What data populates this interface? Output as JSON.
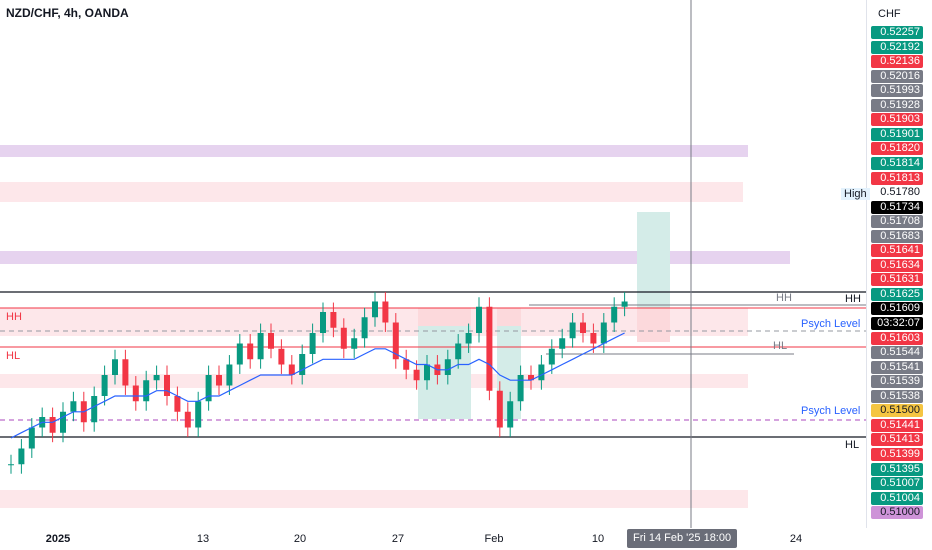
{
  "header": {
    "symbol": "NZD/CHF, 4h, OANDA",
    "currency": "CHF"
  },
  "price_axis": {
    "labels": [
      {
        "text": "0.52257",
        "bg": "#089981",
        "fg": "#ffffff"
      },
      {
        "text": "0.52192",
        "bg": "#089981",
        "fg": "#ffffff"
      },
      {
        "text": "0.52136",
        "bg": "#f23645",
        "fg": "#ffffff"
      },
      {
        "text": "0.52016",
        "bg": "#787b86",
        "fg": "#ffffff"
      },
      {
        "text": "0.51993",
        "bg": "#787b86",
        "fg": "#ffffff"
      },
      {
        "text": "0.51928",
        "bg": "#787b86",
        "fg": "#ffffff"
      },
      {
        "text": "0.51903",
        "bg": "#f23645",
        "fg": "#ffffff"
      },
      {
        "text": "0.51901",
        "bg": "#089981",
        "fg": "#ffffff"
      },
      {
        "text": "0.51820",
        "bg": "#f23645",
        "fg": "#ffffff"
      },
      {
        "text": "0.51814",
        "bg": "#089981",
        "fg": "#ffffff"
      },
      {
        "text": "0.51813",
        "bg": "#f23645",
        "fg": "#ffffff"
      },
      {
        "text": "0.51780",
        "bg": "#ffffff",
        "fg": "#131722"
      },
      {
        "text": "0.51734",
        "bg": "#000000",
        "fg": "#ffffff"
      },
      {
        "text": "0.51708",
        "bg": "#787b86",
        "fg": "#ffffff"
      },
      {
        "text": "0.51683",
        "bg": "#787b86",
        "fg": "#ffffff"
      },
      {
        "text": "0.51641",
        "bg": "#f23645",
        "fg": "#ffffff"
      },
      {
        "text": "0.51634",
        "bg": "#f23645",
        "fg": "#ffffff"
      },
      {
        "text": "0.51631",
        "bg": "#f23645",
        "fg": "#ffffff"
      },
      {
        "text": "0.51625",
        "bg": "#089981",
        "fg": "#ffffff"
      },
      {
        "text": "0.51609",
        "bg": "#000000",
        "fg": "#ffffff"
      },
      {
        "text": "03:32:07",
        "bg": "#000000",
        "fg": "#ffffff"
      },
      {
        "text": "0.51603",
        "bg": "#f23645",
        "fg": "#ffffff"
      },
      {
        "text": "0.51544",
        "bg": "#787b86",
        "fg": "#ffffff"
      },
      {
        "text": "0.51541",
        "bg": "#787b86",
        "fg": "#ffffff"
      },
      {
        "text": "0.51539",
        "bg": "#787b86",
        "fg": "#ffffff"
      },
      {
        "text": "0.51538",
        "bg": "#787b86",
        "fg": "#ffffff"
      },
      {
        "text": "0.51500",
        "bg": "#f5c542",
        "fg": "#131722"
      },
      {
        "text": "0.51441",
        "bg": "#f23645",
        "fg": "#ffffff"
      },
      {
        "text": "0.51413",
        "bg": "#f23645",
        "fg": "#ffffff"
      },
      {
        "text": "0.51399",
        "bg": "#f23645",
        "fg": "#ffffff"
      },
      {
        "text": "0.51395",
        "bg": "#089981",
        "fg": "#ffffff"
      },
      {
        "text": "0.51007",
        "bg": "#089981",
        "fg": "#ffffff"
      },
      {
        "text": "0.51004",
        "bg": "#089981",
        "fg": "#ffffff"
      },
      {
        "text": "0.51000",
        "bg": "#ce93d8",
        "fg": "#131722"
      }
    ],
    "tags": {
      "high": "High",
      "psych1": "Psych Level",
      "psych2": "Psych Level",
      "hh_right": "HH",
      "hl_right": "HL",
      "hh_gray": "HH",
      "hl_gray": "HL",
      "hh_left": "HH",
      "hl_left": "HL"
    }
  },
  "time_axis": {
    "labels": [
      "2025",
      "13",
      "20",
      "27",
      "Feb",
      "10",
      "24"
    ],
    "crosshair": "Fri 14 Feb '25   18:00"
  },
  "colors": {
    "up": "#089981",
    "down": "#f23645",
    "ma": "#2962ff",
    "zone_pink": "#fde7ea",
    "zone_purple": "#e6d3ef",
    "target": "#d4ece8",
    "stop": "#fcd9dc"
  },
  "chart_data": {
    "type": "candlestick",
    "title": "NZD/CHF, 4h, OANDA",
    "ylabel": "CHF",
    "ylim": [
      0.51,
      0.52257
    ],
    "x_tick_labels": [
      "2025",
      "13",
      "20",
      "27",
      "Feb",
      "10",
      "24"
    ],
    "levels": {
      "HH": 0.51625,
      "HL": 0.51603,
      "psych_levels": [
        0.51641,
        0.515
      ],
      "high": 0.5178,
      "last_price": 0.51609
    },
    "series": [
      {
        "name": "price",
        "values": [
          0.5133,
          0.5136,
          0.514,
          0.5142,
          0.5139,
          0.5143,
          0.5145,
          0.5141,
          0.5146,
          0.515,
          0.5153,
          0.5148,
          0.5145,
          0.5149,
          0.515,
          0.5146,
          0.5143,
          0.514,
          0.5145,
          0.515,
          0.5148,
          0.5152,
          0.5156,
          0.5153,
          0.5158,
          0.5155,
          0.5152,
          0.515,
          0.5154,
          0.5158,
          0.5162,
          0.5159,
          0.5155,
          0.5157,
          0.5161,
          0.5164,
          0.516,
          0.5153,
          0.5151,
          0.5149,
          0.5152,
          0.515,
          0.5153,
          0.5156,
          0.5158,
          0.5163,
          0.5147,
          0.514,
          0.5145,
          0.515,
          0.5149,
          0.5152,
          0.5155,
          0.5157,
          0.516,
          0.5158,
          0.5156,
          0.516,
          0.5163,
          0.5164
        ]
      },
      {
        "name": "MA",
        "values": [
          0.5138,
          0.5139,
          0.514,
          0.5141,
          0.5141,
          0.5142,
          0.5143,
          0.5143,
          0.5144,
          0.5145,
          0.5146,
          0.5146,
          0.5146,
          0.5146,
          0.5147,
          0.5147,
          0.5146,
          0.5145,
          0.5145,
          0.5146,
          0.5146,
          0.5147,
          0.5148,
          0.5149,
          0.515,
          0.515,
          0.515,
          0.515,
          0.5151,
          0.5152,
          0.5153,
          0.5153,
          0.5153,
          0.5153,
          0.5154,
          0.5155,
          0.5155,
          0.5154,
          0.5153,
          0.5152,
          0.5152,
          0.5151,
          0.5151,
          0.5152,
          0.5152,
          0.5153,
          0.5152,
          0.515,
          0.5149,
          0.5149,
          0.5149,
          0.515,
          0.5151,
          0.5152,
          0.5153,
          0.5154,
          0.5155,
          0.5156,
          0.5157,
          0.5158
        ]
      }
    ]
  }
}
